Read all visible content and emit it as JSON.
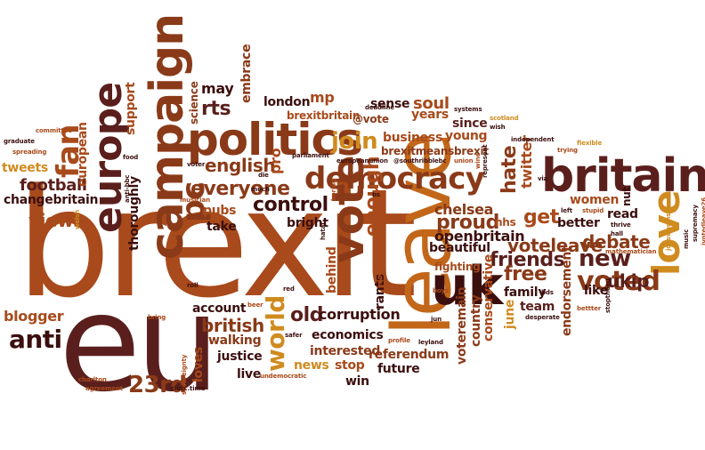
{
  "palette": {
    "maroon": "#5a1f1c",
    "brown": "#8a3a18",
    "orange": "#c2671a",
    "gold": "#d08b1f",
    "rust": "#a84a1b",
    "dark": "#3b0f0e"
  },
  "words": [
    {
      "text": "brexit"
    },
    {
      "text": "eu"
    },
    {
      "text": "leave"
    },
    {
      "text": "campaign"
    },
    {
      "text": "politics"
    },
    {
      "text": "britain"
    },
    {
      "text": "vote"
    },
    {
      "text": "europe"
    },
    {
      "text": "uk"
    },
    {
      "text": "democracy"
    },
    {
      "text": "love"
    },
    {
      "text": "voted"
    },
    {
      "text": "fan"
    },
    {
      "text": "pc"
    },
    {
      "text": "join"
    },
    {
      "text": "anti"
    },
    {
      "text": "world"
    },
    {
      "text": "football"
    },
    {
      "text": "everyone"
    },
    {
      "text": "english"
    },
    {
      "text": "control"
    },
    {
      "text": "views"
    },
    {
      "text": "proud"
    },
    {
      "text": "friends"
    },
    {
      "text": "voteleave"
    },
    {
      "text": "debate"
    },
    {
      "text": "new"
    },
    {
      "text": "get"
    },
    {
      "text": "free"
    },
    {
      "text": "hate"
    },
    {
      "text": "ukip"
    },
    {
      "text": "23rd"
    },
    {
      "text": "enough"
    },
    {
      "text": "british"
    },
    {
      "text": "old"
    },
    {
      "text": "corruption"
    },
    {
      "text": "blogger"
    },
    {
      "text": "chelsea"
    },
    {
      "text": "openbritain"
    },
    {
      "text": "beautiful"
    },
    {
      "text": "rants"
    },
    {
      "text": "mp"
    },
    {
      "text": "london"
    },
    {
      "text": "rts"
    },
    {
      "text": "may"
    },
    {
      "text": "science"
    },
    {
      "text": "embrace"
    },
    {
      "text": "sense"
    },
    {
      "text": "soul"
    },
    {
      "text": "years"
    },
    {
      "text": "since"
    },
    {
      "text": "young"
    },
    {
      "text": "business"
    },
    {
      "text": "brexitmeansbrexit"
    },
    {
      "text": "brexitbritain"
    },
    {
      "text": "@vote"
    },
    {
      "text": "deadline"
    },
    {
      "text": "systems"
    },
    {
      "text": "wish"
    },
    {
      "text": "twitter"
    },
    {
      "text": "conservative"
    },
    {
      "text": "voteremain"
    },
    {
      "text": "country"
    },
    {
      "text": "june"
    },
    {
      "text": "team"
    },
    {
      "text": "family"
    },
    {
      "text": "endorsement"
    },
    {
      "text": "like"
    },
    {
      "text": "better"
    },
    {
      "text": "read"
    },
    {
      "text": "women"
    },
    {
      "text": "nut"
    },
    {
      "text": "nhs"
    },
    {
      "text": "fighting"
    },
    {
      "text": "economics"
    },
    {
      "text": "referendum"
    },
    {
      "text": "future"
    },
    {
      "text": "win"
    },
    {
      "text": "stop"
    },
    {
      "text": "news"
    },
    {
      "text": "interested"
    },
    {
      "text": "justice"
    },
    {
      "text": "live"
    },
    {
      "text": "loves"
    },
    {
      "text": "walking"
    },
    {
      "text": "account"
    },
    {
      "text": "take"
    },
    {
      "text": "pubs"
    },
    {
      "text": "bright"
    },
    {
      "text": "behind"
    },
    {
      "text": "pro"
    },
    {
      "text": "support"
    },
    {
      "text": "thoroughly"
    },
    {
      "text": "tweets"
    },
    {
      "text": "european"
    },
    {
      "text": "changebritain"
    },
    {
      "text": "scotland"
    },
    {
      "text": "independent"
    },
    {
      "text": "trying"
    },
    {
      "text": "flexible"
    },
    {
      "text": "via"
    },
    {
      "text": "left"
    },
    {
      "text": "stupid"
    },
    {
      "text": "hall"
    },
    {
      "text": "thrive"
    },
    {
      "text": "jobsworths"
    },
    {
      "text": "music"
    },
    {
      "text": "supremacy"
    },
    {
      "text": "ivotedleave26"
    },
    {
      "text": "mathematician"
    },
    {
      "text": "stoptheeu"
    },
    {
      "text": "desperate"
    },
    {
      "text": "bettter"
    },
    {
      "text": "boys"
    },
    {
      "text": "bds"
    },
    {
      "text": "leyland"
    },
    {
      "text": "profile"
    },
    {
      "text": "jun"
    },
    {
      "text": "mind"
    },
    {
      "text": "red"
    },
    {
      "text": "roll"
    },
    {
      "text": "beer"
    },
    {
      "text": "bring"
    },
    {
      "text": "safer"
    },
    {
      "text": "undemocratic"
    },
    {
      "text": "sovereignty"
    },
    {
      "text": "club..time"
    },
    {
      "text": "charlton"
    },
    {
      "text": "agreement"
    },
    {
      "text": "former"
    },
    {
      "text": "anti-bbc"
    },
    {
      "text": "welsh"
    },
    {
      "text": "musician"
    },
    {
      "text": "die"
    },
    {
      "text": "much"
    },
    {
      "text": "voter"
    },
    {
      "text": "food"
    },
    {
      "text": "spreading"
    },
    {
      "text": "graduate"
    },
    {
      "text": "committee"
    },
    {
      "text": "parliament"
    },
    {
      "text": "europeanunion"
    },
    {
      "text": "@southribblebc"
    },
    {
      "text": "union"
    },
    {
      "text": "wine"
    },
    {
      "text": "represent"
    },
    {
      "text": "hate"
    },
    {
      "text": "hatal"
    },
    {
      "text": "boring"
    },
    {
      "text": "bs"
    }
  ]
}
